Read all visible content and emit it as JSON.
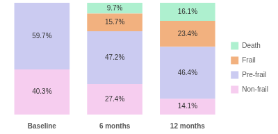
{
  "chart_data": {
    "type": "bar",
    "stacked": true,
    "data_labels": true,
    "legend": "right",
    "grid": false,
    "tick_labels": "x",
    "categories": [
      "Baseline",
      "6 months",
      "12 months"
    ],
    "ylim": [
      0,
      100
    ],
    "series": [
      {
        "name": "Non-frail",
        "color": "#f6cdef",
        "values": [
          40.3,
          27.4,
          14.1
        ],
        "value_labels": [
          "40.3%",
          "27.4%",
          "14.1%"
        ]
      },
      {
        "name": "Pre-frail",
        "color": "#cbcbf1",
        "values": [
          59.7,
          47.2,
          46.4
        ],
        "value_labels": [
          "59.7%",
          "47.2%",
          "46.4%"
        ]
      },
      {
        "name": "Frail",
        "color": "#f2b17f",
        "values": [
          null,
          15.7,
          23.4
        ],
        "value_labels": [
          null,
          "15.7%",
          "23.4%"
        ]
      },
      {
        "name": "Death",
        "color": "#aef0cf",
        "values": [
          null,
          9.7,
          16.1
        ],
        "value_labels": [
          null,
          "9.7%",
          "16.1%"
        ]
      }
    ]
  }
}
